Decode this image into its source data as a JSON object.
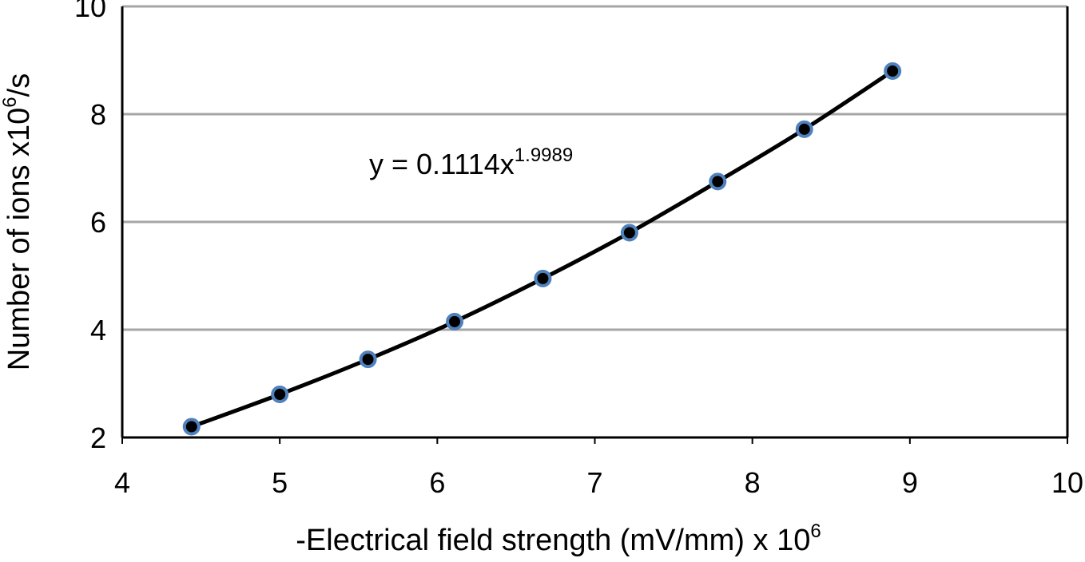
{
  "chart_data": {
    "type": "scatter",
    "title": "",
    "xlabel": "-Electrical field strength  (mV/mm) x 10",
    "xlabel_sup": "6",
    "ylabel": "Number of ions x10",
    "ylabel_sup": "6",
    "ylabel_suffix": "/s",
    "xlim": [
      4,
      10
    ],
    "ylim": [
      2,
      10
    ],
    "xticks": [
      4,
      5,
      6,
      7,
      8,
      9,
      10
    ],
    "yticks": [
      2,
      4,
      6,
      8,
      10
    ],
    "grid": "horizontal",
    "legend": "none",
    "series": [
      {
        "marker_color": "#000000",
        "marker_edge_color": "#4f81bd",
        "line_color": "#000000",
        "x": [
          4.44,
          5.0,
          5.56,
          6.11,
          6.67,
          7.22,
          7.78,
          8.33,
          8.89
        ],
        "y": [
          2.2,
          2.8,
          3.45,
          4.15,
          4.95,
          5.8,
          6.75,
          7.72,
          8.8
        ]
      }
    ],
    "trendline": {
      "type": "power",
      "coefficient": 0.1114,
      "exponent": 1.9989
    },
    "annotations": [
      {
        "text": "y = 0.1114x",
        "sup": "1.9989"
      }
    ]
  }
}
